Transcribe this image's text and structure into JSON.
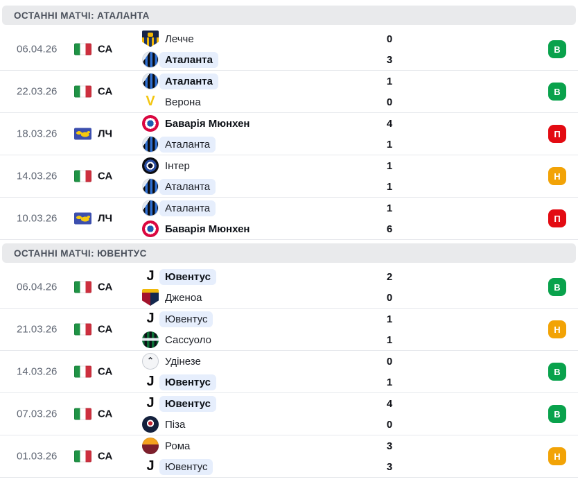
{
  "colors": {
    "win": "#09a24c",
    "loss": "#e30b12",
    "draw": "#f2a306",
    "highlight_pill": "#e6eefc",
    "header_bg": "#e9eaec"
  },
  "sections": [
    {
      "title": "ОСТАННІ МАТЧІ: АТАЛАНТА",
      "rows": [
        {
          "date": "06.04.26",
          "competition": {
            "label": "СА",
            "flag": "italy"
          },
          "teams": [
            {
              "name": "Лечче",
              "logo": "lecce",
              "score": "0",
              "bold": false,
              "highlight": false
            },
            {
              "name": "Аталанта",
              "logo": "atalanta",
              "score": "3",
              "bold": true,
              "highlight": true
            }
          ],
          "result": {
            "label": "В",
            "type": "win"
          }
        },
        {
          "date": "22.03.26",
          "competition": {
            "label": "СА",
            "flag": "italy"
          },
          "teams": [
            {
              "name": "Аталанта",
              "logo": "atalanta",
              "score": "1",
              "bold": true,
              "highlight": true
            },
            {
              "name": "Верона",
              "logo": "verona",
              "score": "0",
              "bold": false,
              "highlight": false
            }
          ],
          "result": {
            "label": "В",
            "type": "win"
          }
        },
        {
          "date": "18.03.26",
          "competition": {
            "label": "ЛЧ",
            "flag": "ucl"
          },
          "teams": [
            {
              "name": "Баварія Мюнхен",
              "logo": "bayern",
              "score": "4",
              "bold": true,
              "highlight": false
            },
            {
              "name": "Аталанта",
              "logo": "atalanta",
              "score": "1",
              "bold": false,
              "highlight": true
            }
          ],
          "result": {
            "label": "П",
            "type": "loss"
          }
        },
        {
          "date": "14.03.26",
          "competition": {
            "label": "СА",
            "flag": "italy"
          },
          "teams": [
            {
              "name": "Інтер",
              "logo": "inter",
              "score": "1",
              "bold": false,
              "highlight": false
            },
            {
              "name": "Аталанта",
              "logo": "atalanta",
              "score": "1",
              "bold": false,
              "highlight": true
            }
          ],
          "result": {
            "label": "Н",
            "type": "draw"
          }
        },
        {
          "date": "10.03.26",
          "competition": {
            "label": "ЛЧ",
            "flag": "ucl"
          },
          "teams": [
            {
              "name": "Аталанта",
              "logo": "atalanta",
              "score": "1",
              "bold": false,
              "highlight": true
            },
            {
              "name": "Баварія Мюнхен",
              "logo": "bayern",
              "score": "6",
              "bold": true,
              "highlight": false
            }
          ],
          "result": {
            "label": "П",
            "type": "loss"
          }
        }
      ]
    },
    {
      "title": "ОСТАННІ МАТЧІ: ЮВЕНТУС",
      "rows": [
        {
          "date": "06.04.26",
          "competition": {
            "label": "СА",
            "flag": "italy"
          },
          "teams": [
            {
              "name": "Ювентус",
              "logo": "juventus",
              "score": "2",
              "bold": true,
              "highlight": true
            },
            {
              "name": "Дженоа",
              "logo": "genoa",
              "score": "0",
              "bold": false,
              "highlight": false
            }
          ],
          "result": {
            "label": "В",
            "type": "win"
          }
        },
        {
          "date": "21.03.26",
          "competition": {
            "label": "СА",
            "flag": "italy"
          },
          "teams": [
            {
              "name": "Ювентус",
              "logo": "juventus",
              "score": "1",
              "bold": false,
              "highlight": true
            },
            {
              "name": "Сассуоло",
              "logo": "sassuolo",
              "score": "1",
              "bold": false,
              "highlight": false
            }
          ],
          "result": {
            "label": "Н",
            "type": "draw"
          }
        },
        {
          "date": "14.03.26",
          "competition": {
            "label": "СА",
            "flag": "italy"
          },
          "teams": [
            {
              "name": "Удінезе",
              "logo": "udinese",
              "score": "0",
              "bold": false,
              "highlight": false
            },
            {
              "name": "Ювентус",
              "logo": "juventus",
              "score": "1",
              "bold": true,
              "highlight": true
            }
          ],
          "result": {
            "label": "В",
            "type": "win"
          }
        },
        {
          "date": "07.03.26",
          "competition": {
            "label": "СА",
            "flag": "italy"
          },
          "teams": [
            {
              "name": "Ювентус",
              "logo": "juventus",
              "score": "4",
              "bold": true,
              "highlight": true
            },
            {
              "name": "Піза",
              "logo": "pisa",
              "score": "0",
              "bold": false,
              "highlight": false
            }
          ],
          "result": {
            "label": "В",
            "type": "win"
          }
        },
        {
          "date": "01.03.26",
          "competition": {
            "label": "СА",
            "flag": "italy"
          },
          "teams": [
            {
              "name": "Рома",
              "logo": "roma",
              "score": "3",
              "bold": false,
              "highlight": false
            },
            {
              "name": "Ювентус",
              "logo": "juventus",
              "score": "3",
              "bold": false,
              "highlight": true
            }
          ],
          "result": {
            "label": "Н",
            "type": "draw"
          }
        }
      ]
    }
  ]
}
